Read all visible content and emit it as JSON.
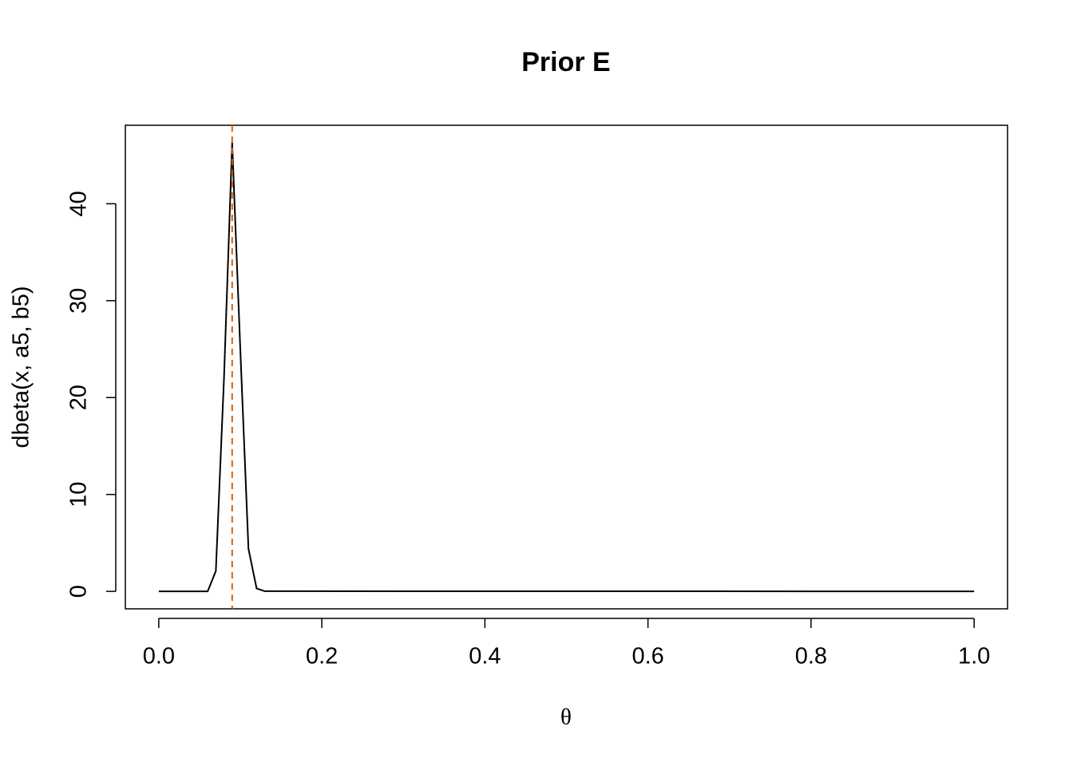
{
  "chart_data": {
    "type": "line",
    "title": "Prior E",
    "x_label": "θ",
    "y_label": "dbeta(x, a5, b5)",
    "x": [
      0,
      0.06,
      0.07,
      0.08,
      0.09,
      0.1,
      0.11,
      0.12,
      0.13,
      1.0
    ],
    "series": [
      {
        "values": [
          0,
          0,
          2.1,
          22,
          46.3,
          25,
          4.4,
          0.3,
          0.02,
          0
        ],
        "color": "#000000"
      }
    ],
    "vline": {
      "value": 0.09,
      "color": "#d95f02"
    },
    "xlim": [
      -0.041,
      1.041
    ],
    "ylim": [
      -1.8,
      48.1
    ],
    "xticks": [
      {
        "value": 0,
        "label": "0.0"
      },
      0.2,
      0.4,
      0.6,
      0.8,
      {
        "value": 1,
        "label": "1.0"
      }
    ],
    "yticks": [
      0,
      10,
      20,
      30,
      40
    ]
  }
}
